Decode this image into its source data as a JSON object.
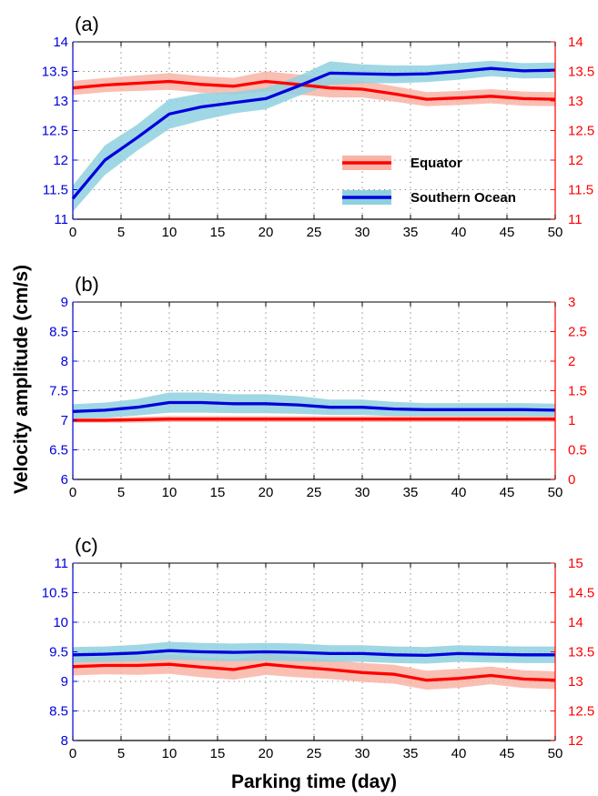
{
  "figure": {
    "ylabel": "Velocity amplitude (cm/s)",
    "xlabel": "Parking time (day)"
  },
  "colors": {
    "equator_line": "#ff0000",
    "equator_band": "#f9b4a6",
    "southern_line": "#0000dd",
    "southern_band": "#8fd0df",
    "left_axis": "#0000dd",
    "right_axis": "#ff0000",
    "grid": "#777777"
  },
  "legend": {
    "equator": "Equator",
    "southern": "Southern Ocean"
  },
  "chart_data": [
    {
      "type": "line",
      "panel": "(a)",
      "x_label": "",
      "xlim": [
        0,
        50
      ],
      "x_ticks": [
        0,
        5,
        10,
        15,
        20,
        25,
        30,
        35,
        40,
        45,
        50
      ],
      "y_left": {
        "range": [
          11,
          14
        ],
        "ticks": [
          11,
          11.5,
          12,
          12.5,
          13,
          13.5,
          14
        ]
      },
      "y_right": {
        "range": [
          11,
          14
        ],
        "ticks": [
          11,
          11.5,
          12,
          12.5,
          13,
          13.5,
          14
        ]
      },
      "grid": true,
      "legend_position": "right-center",
      "x": [
        0,
        3.33,
        6.67,
        10,
        13.33,
        16.67,
        20,
        23.33,
        26.67,
        30,
        33.33,
        36.67,
        40,
        43.33,
        46.67,
        50
      ],
      "series": [
        {
          "name": "Equator",
          "axis": "right",
          "values": [
            13.22,
            13.27,
            13.3,
            13.33,
            13.28,
            13.25,
            13.33,
            13.28,
            13.22,
            13.2,
            13.12,
            13.03,
            13.05,
            13.08,
            13.04,
            13.03
          ],
          "band": [
            0.12,
            0.12,
            0.13,
            0.14,
            0.14,
            0.14,
            0.17,
            0.17,
            0.16,
            0.14,
            0.13,
            0.12,
            0.12,
            0.12,
            0.12,
            0.12
          ]
        },
        {
          "name": "Southern Ocean",
          "axis": "left",
          "values": [
            11.35,
            12.0,
            12.38,
            12.78,
            12.9,
            12.97,
            13.04,
            13.25,
            13.47,
            13.46,
            13.45,
            13.46,
            13.5,
            13.55,
            13.51,
            13.52
          ],
          "band": [
            0.22,
            0.25,
            0.22,
            0.25,
            0.23,
            0.18,
            0.18,
            0.17,
            0.2,
            0.16,
            0.15,
            0.14,
            0.14,
            0.13,
            0.13,
            0.13
          ]
        }
      ]
    },
    {
      "type": "line",
      "panel": "(b)",
      "x_label": "",
      "xlim": [
        0,
        50
      ],
      "x_ticks": [
        0,
        5,
        10,
        15,
        20,
        25,
        30,
        35,
        40,
        45,
        50
      ],
      "y_left": {
        "range": [
          6,
          9
        ],
        "ticks": [
          6,
          6.5,
          7,
          7.5,
          8,
          8.5,
          9
        ]
      },
      "y_right": {
        "range": [
          0,
          3
        ],
        "ticks": [
          0,
          0.5,
          1,
          1.5,
          2,
          2.5,
          3
        ]
      },
      "grid": true,
      "x": [
        0,
        3.33,
        6.67,
        10,
        13.33,
        16.67,
        20,
        23.33,
        26.67,
        30,
        33.33,
        36.67,
        40,
        43.33,
        46.67,
        50
      ],
      "series": [
        {
          "name": "Equator",
          "axis": "right",
          "values": [
            1.0,
            1.0,
            1.01,
            1.02,
            1.02,
            1.02,
            1.02,
            1.02,
            1.02,
            1.02,
            1.02,
            1.02,
            1.02,
            1.02,
            1.02,
            1.02
          ],
          "band": [
            0.04,
            0.04,
            0.05,
            0.05,
            0.05,
            0.05,
            0.05,
            0.05,
            0.05,
            0.05,
            0.05,
            0.05,
            0.05,
            0.05,
            0.05,
            0.05
          ]
        },
        {
          "name": "Southern Ocean",
          "axis": "left",
          "values": [
            7.15,
            7.17,
            7.22,
            7.3,
            7.3,
            7.28,
            7.28,
            7.26,
            7.22,
            7.22,
            7.19,
            7.18,
            7.18,
            7.18,
            7.18,
            7.17
          ],
          "band": [
            0.12,
            0.13,
            0.14,
            0.17,
            0.17,
            0.16,
            0.16,
            0.15,
            0.13,
            0.13,
            0.12,
            0.11,
            0.11,
            0.11,
            0.11,
            0.11
          ]
        }
      ]
    },
    {
      "type": "line",
      "panel": "(c)",
      "x_label": "Parking time (day)",
      "xlim": [
        0,
        50
      ],
      "x_ticks": [
        0,
        5,
        10,
        15,
        20,
        25,
        30,
        35,
        40,
        45,
        50
      ],
      "y_left": {
        "range": [
          8,
          11
        ],
        "ticks": [
          8,
          8.5,
          9,
          9.5,
          10,
          10.5,
          11
        ]
      },
      "y_right": {
        "range": [
          12,
          15
        ],
        "ticks": [
          12,
          12.5,
          13,
          13.5,
          14,
          14.5,
          15
        ]
      },
      "grid": true,
      "x": [
        0,
        3.33,
        6.67,
        10,
        13.33,
        16.67,
        20,
        23.33,
        26.67,
        30,
        33.33,
        36.67,
        40,
        43.33,
        46.67,
        50
      ],
      "series": [
        {
          "name": "Equator",
          "axis": "right",
          "values": [
            13.25,
            13.27,
            13.27,
            13.29,
            13.24,
            13.2,
            13.29,
            13.24,
            13.2,
            13.15,
            13.12,
            13.02,
            13.05,
            13.1,
            13.04,
            13.02
          ],
          "band": [
            0.15,
            0.15,
            0.16,
            0.16,
            0.17,
            0.17,
            0.18,
            0.17,
            0.16,
            0.16,
            0.16,
            0.16,
            0.16,
            0.15,
            0.15,
            0.15
          ]
        },
        {
          "name": "Southern Ocean",
          "axis": "left",
          "values": [
            9.45,
            9.46,
            9.48,
            9.52,
            9.5,
            9.49,
            9.5,
            9.49,
            9.47,
            9.47,
            9.45,
            9.44,
            9.47,
            9.46,
            9.45,
            9.45
          ],
          "band": [
            0.13,
            0.13,
            0.14,
            0.15,
            0.15,
            0.15,
            0.15,
            0.15,
            0.14,
            0.14,
            0.14,
            0.14,
            0.14,
            0.14,
            0.14,
            0.14
          ]
        }
      ]
    }
  ]
}
